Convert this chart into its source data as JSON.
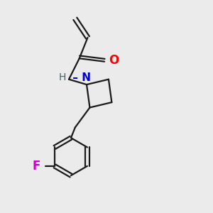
{
  "background_color": "#ebebeb",
  "bond_color": "#1a1a1a",
  "oxygen_color": "#ff0000",
  "nitrogen_color": "#0000cc",
  "fluorine_color": "#cc00cc",
  "line_width": 1.6,
  "figsize": [
    3.0,
    3.0
  ],
  "dpi": 100,
  "xlim": [
    0,
    10
  ],
  "ylim": [
    0,
    10
  ]
}
